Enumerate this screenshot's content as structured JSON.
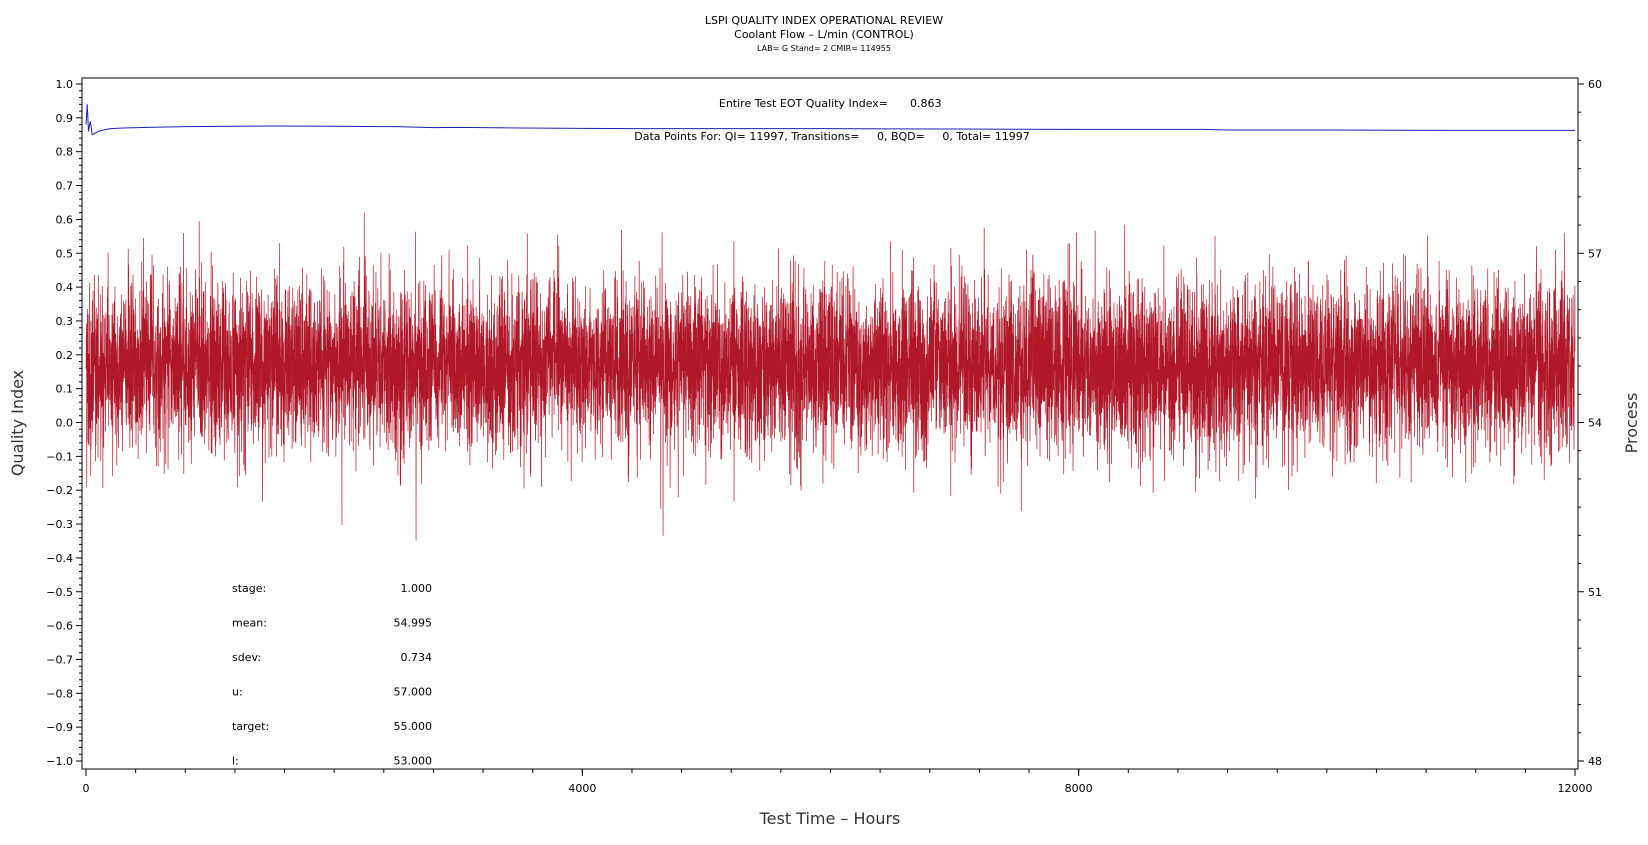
{
  "chart_data": {
    "type": "line",
    "title": "LSPI QUALITY INDEX OPERATIONAL REVIEW",
    "subtitle": "Coolant Flow – L/min (CONTROL)",
    "subtitle2": "LAB= G Stand= 2 CMIR= 114955",
    "xlabel": "Test Time – Hours",
    "ylabel": "Quality Index",
    "y2label": "Process",
    "xlim": [
      0,
      12000
    ],
    "ylim": [
      -1.0,
      1.0
    ],
    "y2lim": [
      48,
      60
    ],
    "x_ticks": [
      "0",
      "4000",
      "8000",
      "12000"
    ],
    "y_ticks": [
      "−1.0",
      "−0.9",
      "−0.8",
      "−0.7",
      "−0.6",
      "−0.5",
      "−0.4",
      "−0.3",
      "−0.2",
      "−0.1",
      "0.0",
      "0.1",
      "0.2",
      "0.3",
      "0.4",
      "0.5",
      "0.6",
      "0.7",
      "0.8",
      "0.9",
      "1.0"
    ],
    "y2_ticks": [
      "48",
      "51",
      "54",
      "57",
      "60"
    ],
    "grid": false,
    "annotations": {
      "eot_label": "Entire Test EOT Quality Index=",
      "eot_value": "0.863",
      "points_line": "Data Points For: QI= 11997, Transitions=     0, BQD=     0, Total= 11997"
    },
    "stats": [
      {
        "label": "stage:",
        "value": "1.000"
      },
      {
        "label": "mean:",
        "value": "54.995"
      },
      {
        "label": "sdev:",
        "value": "0.734"
      },
      {
        "label": "u:",
        "value": "57.000"
      },
      {
        "label": "target:",
        "value": "55.000"
      },
      {
        "label": "l:",
        "value": "53.000"
      }
    ],
    "series": [
      {
        "axis": "left",
        "color": "#2020b0",
        "x": [
          0,
          10,
          20,
          35,
          50,
          75,
          100,
          150,
          200,
          300,
          500,
          800,
          1200,
          1500,
          2000,
          2500,
          2800,
          3000,
          3500,
          4000,
          4500,
          5000,
          6000,
          7000,
          8000,
          9000,
          9200,
          10000,
          11000,
          12000
        ],
        "y": [
          0.88,
          0.94,
          0.86,
          0.89,
          0.85,
          0.855,
          0.86,
          0.865,
          0.868,
          0.87,
          0.872,
          0.874,
          0.875,
          0.876,
          0.875,
          0.874,
          0.871,
          0.872,
          0.87,
          0.869,
          0.868,
          0.868,
          0.868,
          0.867,
          0.866,
          0.866,
          0.864,
          0.864,
          0.863,
          0.863
        ]
      },
      {
        "axis": "right",
        "color": "#b01828",
        "mean": 54.995,
        "sdev": 0.734,
        "points": 11997
      }
    ]
  }
}
